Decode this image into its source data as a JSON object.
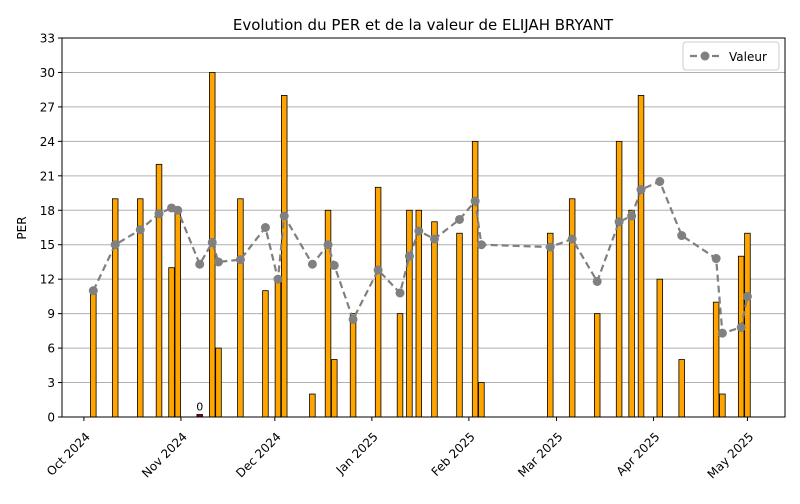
{
  "chart_data": {
    "type": "bar",
    "title": "Evolution du PER et de la valeur de ELIJAH BRYANT",
    "xlabel": "",
    "ylabel": "PER",
    "ylim": [
      0,
      33
    ],
    "yticks": [
      0,
      3,
      6,
      9,
      12,
      15,
      18,
      21,
      24,
      27,
      30,
      33
    ],
    "grid": "horizontal",
    "legend_position": "top-right",
    "x_ticks": [
      {
        "date": "2024-10-01",
        "label": "Oct 2024"
      },
      {
        "date": "2024-11-01",
        "label": "Nov 2024"
      },
      {
        "date": "2024-12-01",
        "label": "Dec 2024"
      },
      {
        "date": "2025-01-01",
        "label": "Jan 2025"
      },
      {
        "date": "2025-02-01",
        "label": "Feb 2025"
      },
      {
        "date": "2025-03-01",
        "label": "Mar 2025"
      },
      {
        "date": "2025-04-01",
        "label": "Apr 2025"
      },
      {
        "date": "2025-05-01",
        "label": "May 2025"
      }
    ],
    "x_range": [
      "2024-09-24",
      "2025-05-13"
    ],
    "colors": {
      "bar": "#FFA500",
      "bar_negative": "#8B0000",
      "bar_edge": "#000000",
      "line": "#808080",
      "grid": "#b0b0b0"
    },
    "per_series": [
      {
        "date": "2024-10-04",
        "value": 11
      },
      {
        "date": "2024-10-11",
        "value": 19
      },
      {
        "date": "2024-10-19",
        "value": 19
      },
      {
        "date": "2024-10-25",
        "value": 22
      },
      {
        "date": "2024-10-29",
        "value": 13
      },
      {
        "date": "2024-10-31",
        "value": 18
      },
      {
        "date": "2024-11-07",
        "value": 0,
        "label": "0"
      },
      {
        "date": "2024-11-11",
        "value": 30
      },
      {
        "date": "2024-11-13",
        "value": 6
      },
      {
        "date": "2024-11-20",
        "value": 19
      },
      {
        "date": "2024-11-28",
        "value": 11
      },
      {
        "date": "2024-12-02",
        "value": 12
      },
      {
        "date": "2024-12-04",
        "value": 28
      },
      {
        "date": "2024-12-13",
        "value": 2
      },
      {
        "date": "2024-12-18",
        "value": 18
      },
      {
        "date": "2024-12-20",
        "value": 5
      },
      {
        "date": "2024-12-26",
        "value": 9
      },
      {
        "date": "2025-01-03",
        "value": 20
      },
      {
        "date": "2025-01-10",
        "value": 9
      },
      {
        "date": "2025-01-13",
        "value": 18
      },
      {
        "date": "2025-01-16",
        "value": 18
      },
      {
        "date": "2025-01-21",
        "value": 17
      },
      {
        "date": "2025-01-29",
        "value": 16
      },
      {
        "date": "2025-02-03",
        "value": 24
      },
      {
        "date": "2025-02-05",
        "value": 3
      },
      {
        "date": "2025-02-27",
        "value": 16
      },
      {
        "date": "2025-03-06",
        "value": 19
      },
      {
        "date": "2025-03-14",
        "value": 9
      },
      {
        "date": "2025-03-21",
        "value": 24
      },
      {
        "date": "2025-03-25",
        "value": 18
      },
      {
        "date": "2025-03-28",
        "value": 28
      },
      {
        "date": "2025-04-03",
        "value": 12
      },
      {
        "date": "2025-04-10",
        "value": 5
      },
      {
        "date": "2025-04-21",
        "value": 10
      },
      {
        "date": "2025-04-23",
        "value": 2
      },
      {
        "date": "2025-04-29",
        "value": 14
      },
      {
        "date": "2025-05-01",
        "value": 16
      }
    ],
    "value_series": {
      "name": "Valeur",
      "points": [
        {
          "date": "2024-10-04",
          "value": 11.0
        },
        {
          "date": "2024-10-11",
          "value": 15.0
        },
        {
          "date": "2024-10-19",
          "value": 16.3
        },
        {
          "date": "2024-10-25",
          "value": 17.7
        },
        {
          "date": "2024-10-29",
          "value": 18.2
        },
        {
          "date": "2024-10-31",
          "value": 18.0
        },
        {
          "date": "2024-11-07",
          "value": 13.3
        },
        {
          "date": "2024-11-11",
          "value": 15.2
        },
        {
          "date": "2024-11-13",
          "value": 13.5
        },
        {
          "date": "2024-11-20",
          "value": 13.7
        },
        {
          "date": "2024-11-28",
          "value": 16.5
        },
        {
          "date": "2024-12-02",
          "value": 12.0
        },
        {
          "date": "2024-12-04",
          "value": 17.5
        },
        {
          "date": "2024-12-13",
          "value": 13.3
        },
        {
          "date": "2024-12-18",
          "value": 15.0
        },
        {
          "date": "2024-12-20",
          "value": 13.2
        },
        {
          "date": "2024-12-26",
          "value": 8.5
        },
        {
          "date": "2025-01-03",
          "value": 12.8
        },
        {
          "date": "2025-01-10",
          "value": 10.8
        },
        {
          "date": "2025-01-13",
          "value": 14.0
        },
        {
          "date": "2025-01-16",
          "value": 16.2
        },
        {
          "date": "2025-01-21",
          "value": 15.5
        },
        {
          "date": "2025-01-29",
          "value": 17.2
        },
        {
          "date": "2025-02-03",
          "value": 18.8
        },
        {
          "date": "2025-02-05",
          "value": 15.0
        },
        {
          "date": "2025-02-27",
          "value": 14.8
        },
        {
          "date": "2025-03-06",
          "value": 15.5
        },
        {
          "date": "2025-03-14",
          "value": 11.8
        },
        {
          "date": "2025-03-21",
          "value": 17.0
        },
        {
          "date": "2025-03-25",
          "value": 17.5
        },
        {
          "date": "2025-03-28",
          "value": 19.8
        },
        {
          "date": "2025-04-03",
          "value": 20.5
        },
        {
          "date": "2025-04-10",
          "value": 15.8
        },
        {
          "date": "2025-04-21",
          "value": 13.8
        },
        {
          "date": "2025-04-23",
          "value": 7.3
        },
        {
          "date": "2025-04-29",
          "value": 7.8
        },
        {
          "date": "2025-05-01",
          "value": 10.5
        }
      ]
    }
  }
}
